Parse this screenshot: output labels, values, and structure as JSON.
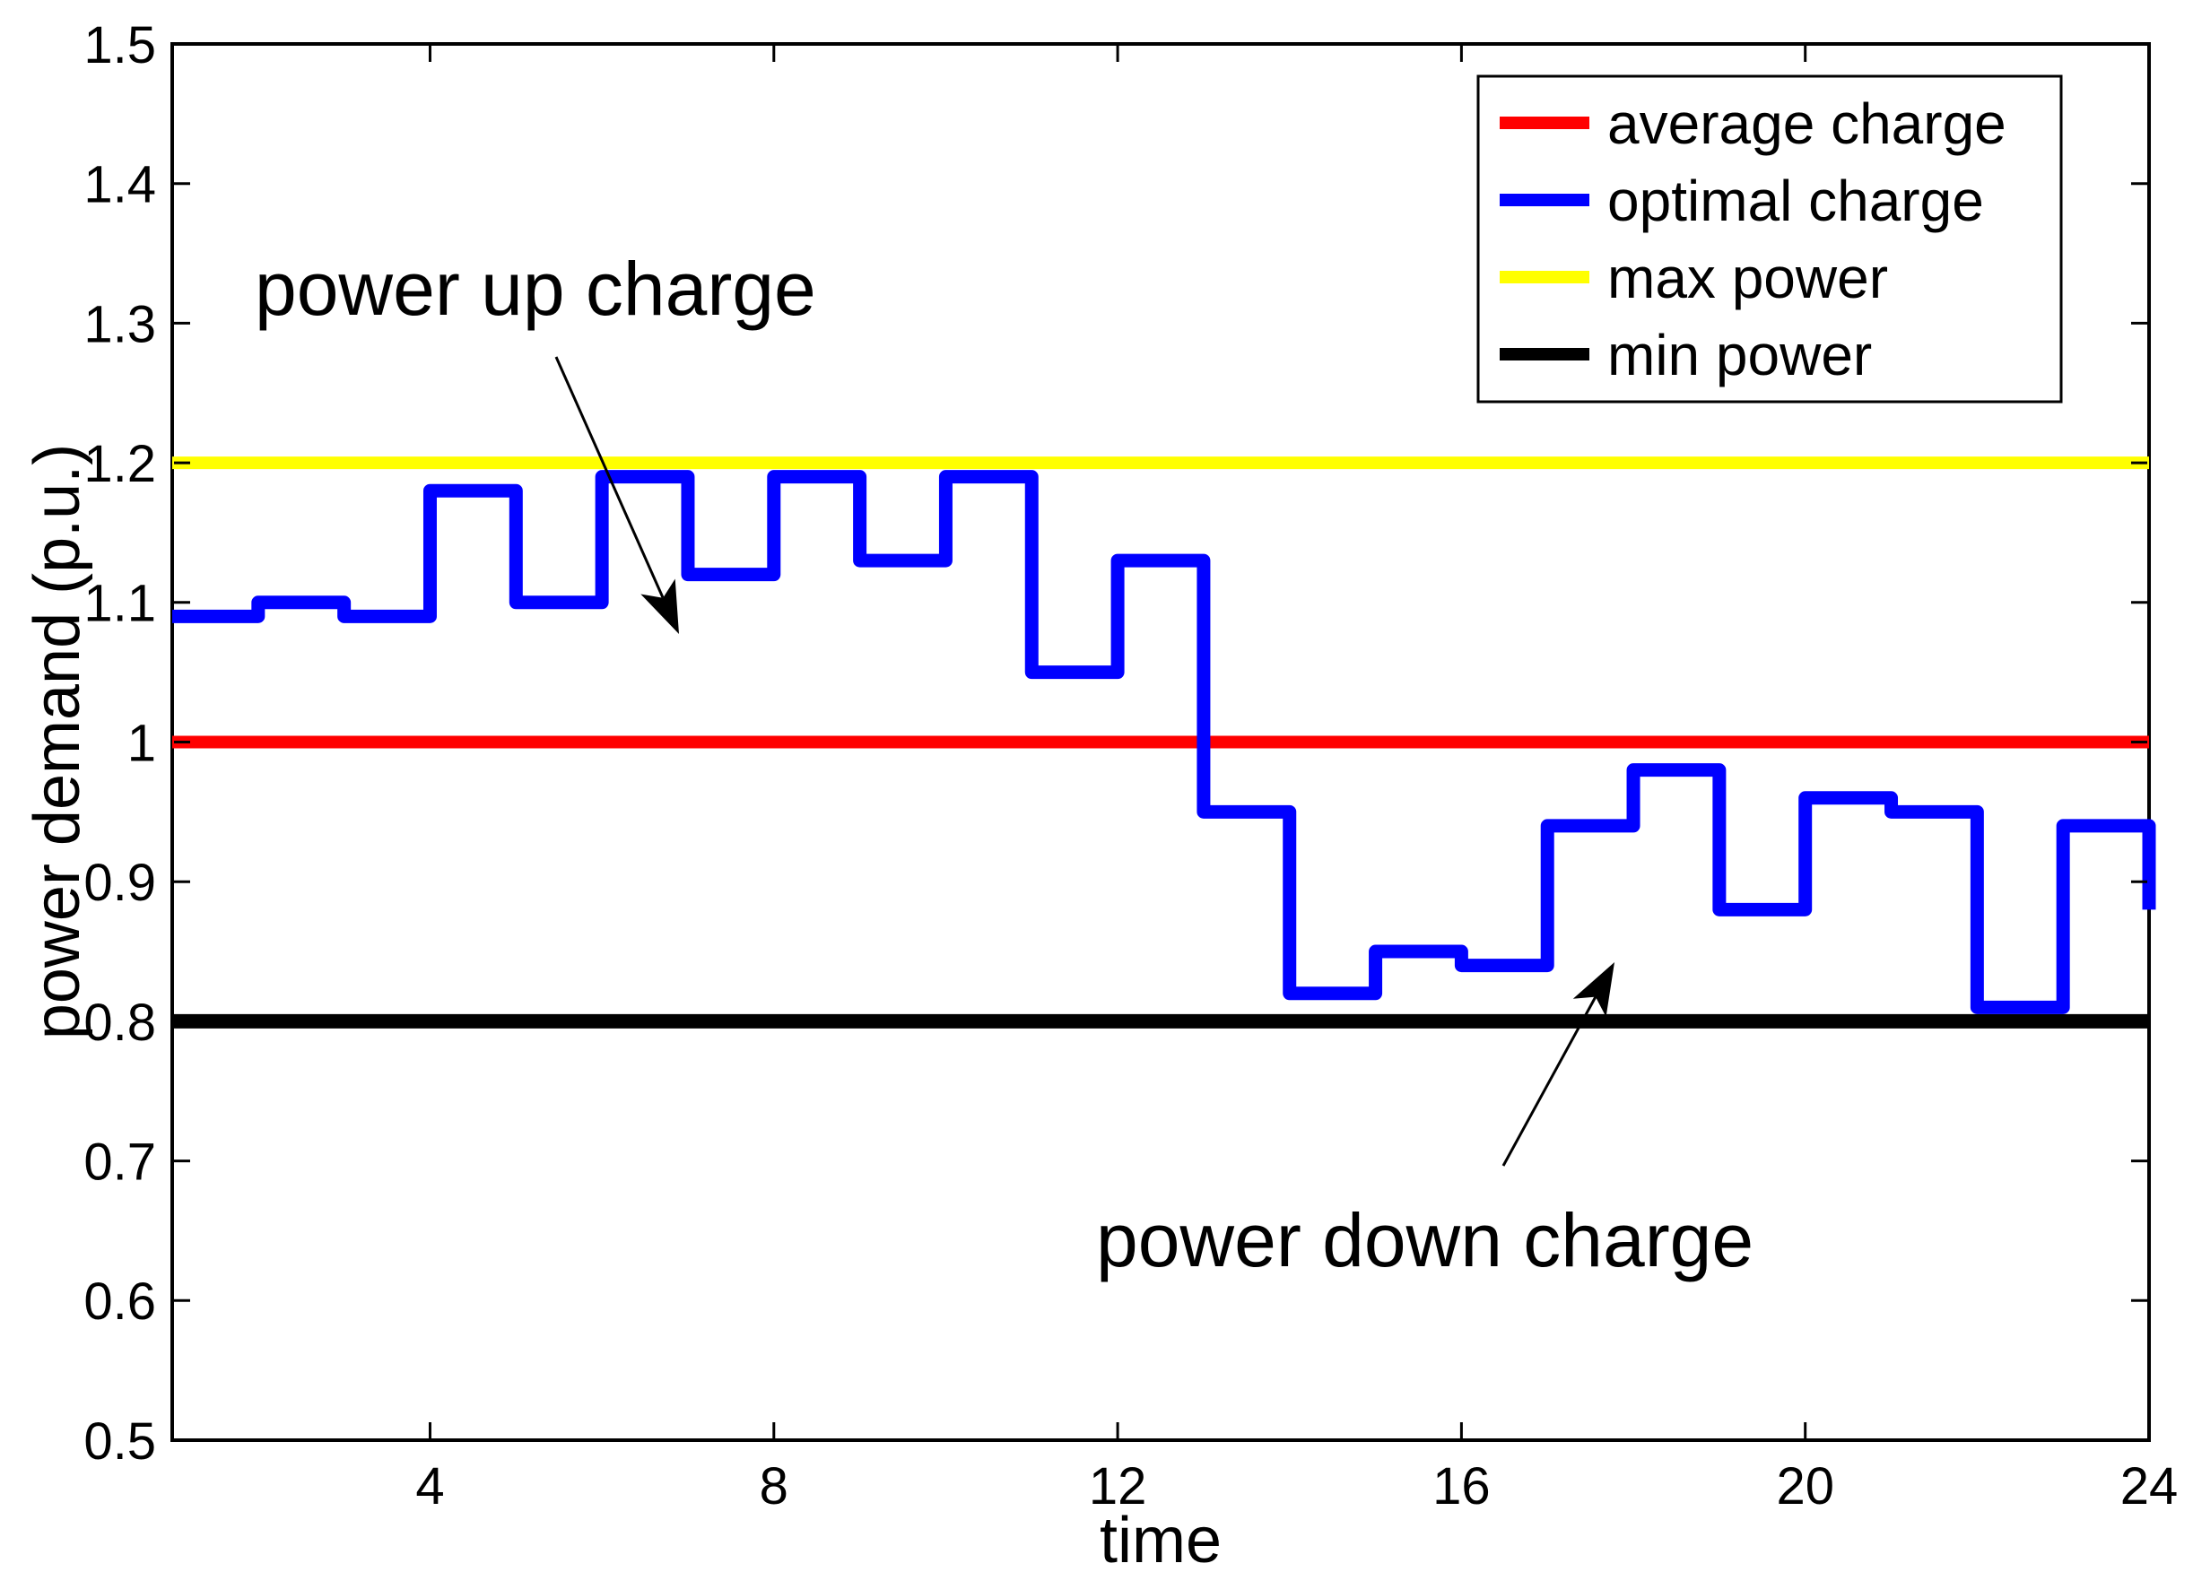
{
  "figure": {
    "background": "#ffffff",
    "frame_color": "#000000"
  },
  "chart_data": {
    "type": "line",
    "step": "stairs",
    "title": "",
    "xlabel": "time",
    "ylabel": "power demand (p.u.)",
    "xlim": [
      1,
      24
    ],
    "ylim": [
      0.5,
      1.5
    ],
    "grid": false,
    "x_ticks": [
      4,
      8,
      12,
      16,
      20,
      24
    ],
    "y_ticks": [
      "0.5",
      "0.6",
      "0.7",
      "0.8",
      "0.9",
      "1",
      "1.1",
      "1.2",
      "1.3",
      "1.4",
      "1.5"
    ],
    "x": [
      1,
      2,
      3,
      4,
      5,
      6,
      7,
      8,
      9,
      10,
      11,
      12,
      13,
      14,
      15,
      16,
      17,
      18,
      19,
      20,
      21,
      22,
      23,
      24
    ],
    "series": [
      {
        "name": "average charge",
        "kind": "hline",
        "value": 1.0,
        "color": "#ff0000",
        "line_width": 14
      },
      {
        "name": "optimal charge",
        "kind": "stairs",
        "values": [
          1.09,
          1.1,
          1.09,
          1.18,
          1.1,
          1.19,
          1.12,
          1.19,
          1.13,
          1.19,
          1.05,
          1.13,
          0.95,
          0.82,
          0.85,
          0.84,
          0.94,
          0.98,
          0.88,
          0.96,
          0.95,
          0.81,
          0.94,
          0.88
        ],
        "color": "#0000ff",
        "line_width": 15
      },
      {
        "name": "max power",
        "kind": "hline",
        "value": 1.2,
        "color": "#ffff00",
        "line_width": 14
      },
      {
        "name": "min power",
        "kind": "hline",
        "value": 0.8,
        "color": "#000000",
        "line_width": 16
      }
    ],
    "legend_position": "northeast"
  },
  "legend": {
    "items": [
      {
        "label": "average charge",
        "color": "#ff0000"
      },
      {
        "label": "optimal charge",
        "color": "#0000ff"
      },
      {
        "label": "max power",
        "color": "#ffff00"
      },
      {
        "label": "min power",
        "color": "#000000"
      }
    ]
  },
  "annotations": [
    {
      "text": "power up charge",
      "arrow": {
        "from": [
          620,
          398
        ],
        "to": [
          757,
          707
        ]
      }
    },
    {
      "text": "power down charge",
      "arrow": {
        "from": [
          1676,
          1300
        ],
        "to": [
          1800,
          1073
        ]
      }
    }
  ]
}
